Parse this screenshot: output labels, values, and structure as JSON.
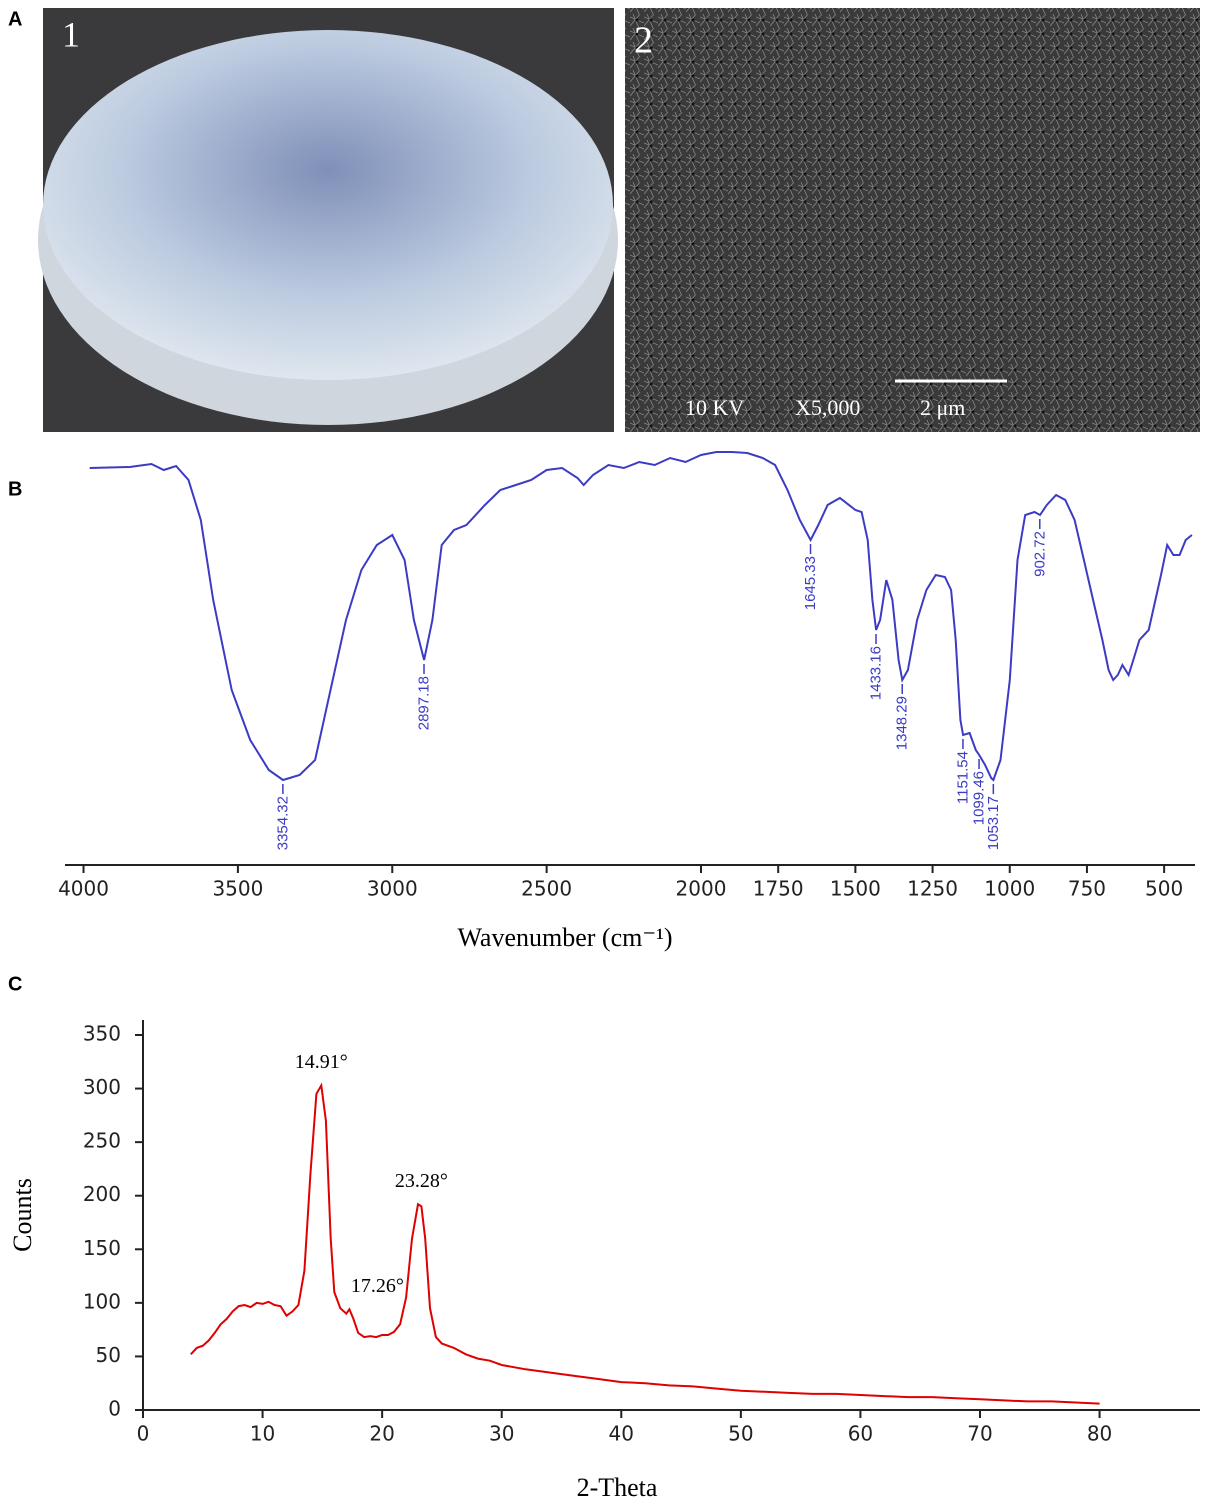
{
  "figure": {
    "panel_labels": [
      "A",
      "B",
      "C"
    ],
    "photo_labels": [
      "1",
      "2"
    ],
    "sem_caption": [
      "10 KV",
      "X5,000",
      "2 μm"
    ]
  },
  "chart_data": [
    {
      "type": "line",
      "color": "#3b3bc4",
      "xlabel": "Wavenumber (cm⁻¹)",
      "xlim": [
        4060,
        400
      ],
      "ylim": [
        0,
        420
      ],
      "xticks": [
        4000,
        3500,
        3000,
        2500,
        2000,
        1750,
        1500,
        1250,
        1000,
        750,
        500
      ],
      "x": [
        3980,
        3850,
        3780,
        3740,
        3700,
        3660,
        3620,
        3580,
        3520,
        3460,
        3400,
        3354,
        3300,
        3250,
        3200,
        3150,
        3100,
        3050,
        3000,
        2960,
        2930,
        2897,
        2870,
        2840,
        2800,
        2760,
        2700,
        2650,
        2600,
        2550,
        2500,
        2450,
        2400,
        2380,
        2350,
        2300,
        2250,
        2200,
        2150,
        2100,
        2050,
        2000,
        1950,
        1900,
        1850,
        1800,
        1760,
        1720,
        1680,
        1645,
        1620,
        1590,
        1550,
        1500,
        1480,
        1460,
        1445,
        1433,
        1420,
        1400,
        1380,
        1360,
        1348,
        1330,
        1300,
        1270,
        1240,
        1210,
        1190,
        1175,
        1160,
        1151,
        1130,
        1110,
        1099,
        1080,
        1060,
        1053,
        1030,
        1000,
        975,
        950,
        920,
        902,
        880,
        850,
        820,
        790,
        760,
        730,
        700,
        680,
        665,
        650,
        635,
        615,
        600,
        580,
        550,
        510,
        490,
        470,
        450,
        430,
        410
      ],
      "values": [
        392,
        393,
        396,
        390,
        394,
        380,
        340,
        260,
        170,
        120,
        90,
        80,
        85,
        100,
        170,
        240,
        290,
        315,
        325,
        300,
        240,
        200,
        240,
        315,
        330,
        335,
        355,
        370,
        375,
        380,
        390,
        392,
        382,
        375,
        385,
        395,
        392,
        398,
        395,
        402,
        398,
        405,
        408,
        408,
        407,
        402,
        395,
        370,
        340,
        320,
        335,
        355,
        362,
        350,
        348,
        320,
        260,
        230,
        240,
        280,
        260,
        200,
        180,
        190,
        240,
        270,
        285,
        283,
        270,
        220,
        140,
        125,
        127,
        110,
        105,
        95,
        82,
        80,
        100,
        180,
        300,
        345,
        348,
        345,
        355,
        365,
        360,
        340,
        300,
        260,
        220,
        190,
        180,
        185,
        195,
        185,
        200,
        220,
        230,
        285,
        315,
        305,
        305,
        320,
        325
      ],
      "annotations": [
        {
          "label": "3354.32",
          "x": 3354.32,
          "y": 80
        },
        {
          "label": "2897.18",
          "x": 2897.18,
          "y": 200
        },
        {
          "label": "1645.33",
          "x": 1645.33,
          "y": 320
        },
        {
          "label": "1433.16",
          "x": 1433.16,
          "y": 230
        },
        {
          "label": "1348.29",
          "x": 1348.29,
          "y": 180
        },
        {
          "label": "1151.54",
          "x": 1151.54,
          "y": 125
        },
        {
          "label": "1099.46",
          "x": 1099.46,
          "y": 105
        },
        {
          "label": "1053.17",
          "x": 1053.17,
          "y": 80
        },
        {
          "label": "902.72",
          "x": 902.72,
          "y": 345
        }
      ]
    },
    {
      "type": "line",
      "color": "#e00000",
      "xlabel": "2-Theta",
      "ylabel": "Counts",
      "xlim": [
        0,
        88.4
      ],
      "ylim": [
        0,
        364
      ],
      "xticks": [
        0,
        10,
        20,
        30,
        40,
        50,
        60,
        70,
        80
      ],
      "yticks": [
        0,
        50,
        100,
        150,
        200,
        250,
        300,
        350
      ],
      "x": [
        4,
        4.5,
        5,
        5.5,
        6,
        6.5,
        7,
        7.5,
        8,
        8.5,
        9,
        9.5,
        10,
        10.5,
        11,
        11.5,
        12,
        12.5,
        13,
        13.5,
        14,
        14.5,
        14.91,
        15.3,
        15.7,
        16,
        16.5,
        17,
        17.26,
        17.6,
        18,
        18.5,
        19,
        19.5,
        20,
        20.5,
        21,
        21.5,
        22,
        22.5,
        23,
        23.28,
        23.6,
        24,
        24.5,
        25,
        26,
        27,
        28,
        29,
        30,
        32,
        34,
        36,
        38,
        40,
        42,
        44,
        46,
        48,
        50,
        52,
        54,
        56,
        58,
        60,
        62,
        64,
        66,
        68,
        70,
        72,
        74,
        76,
        78,
        80
      ],
      "values": [
        52,
        58,
        60,
        65,
        72,
        80,
        85,
        92,
        97,
        98,
        96,
        100,
        99,
        101,
        98,
        97,
        88,
        92,
        98,
        130,
        220,
        295,
        303,
        270,
        160,
        110,
        95,
        90,
        94,
        85,
        72,
        68,
        69,
        68,
        70,
        70,
        73,
        80,
        105,
        160,
        192,
        190,
        160,
        95,
        68,
        62,
        58,
        52,
        48,
        46,
        42,
        38,
        35,
        32,
        29,
        26,
        25,
        23,
        22,
        20,
        18,
        17,
        16,
        15,
        15,
        14,
        13,
        12,
        12,
        11,
        10,
        9,
        8,
        8,
        7,
        6
      ],
      "annotations": [
        {
          "label": "14.91°",
          "x": 14.91,
          "y": 303
        },
        {
          "label": "17.26°",
          "x": 17.26,
          "y": 94
        },
        {
          "label": "23.28°",
          "x": 23.28,
          "y": 192
        }
      ]
    }
  ]
}
